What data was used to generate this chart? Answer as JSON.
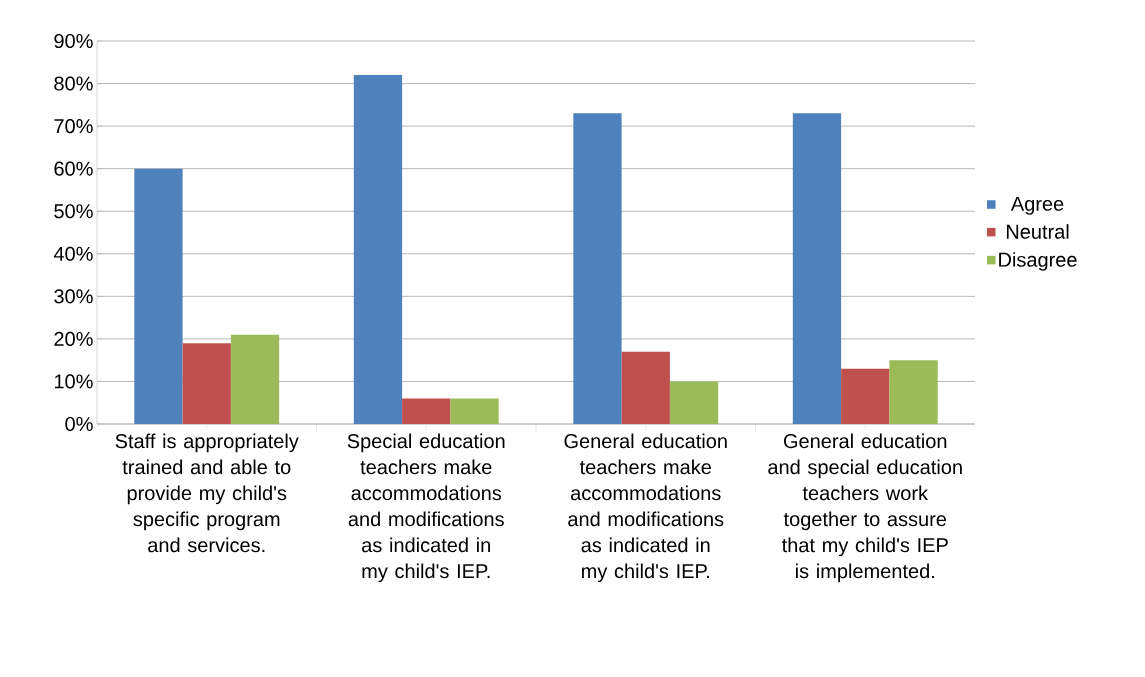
{
  "chart_data": {
    "type": "bar",
    "categories": [
      "Staff is appropriately trained and able to provide my child's specific program and services.",
      "Special education teachers make accommodations and modifications as indicated in my child's IEP.",
      "General education teachers make accommodations and modifications as indicated in my child's IEP.",
      "General education and special education teachers work together to assure that my child's IEP is implemented."
    ],
    "series": [
      {
        "name": "Agree",
        "color": "#4f81bd",
        "values": [
          60,
          82,
          73,
          73
        ]
      },
      {
        "name": "Neutral",
        "color": "#c0504d",
        "values": [
          19,
          6,
          17,
          13
        ]
      },
      {
        "name": "Disagree",
        "color": "#9bbb59",
        "values": [
          21,
          6,
          10,
          15
        ]
      }
    ],
    "ylim": [
      0,
      90
    ],
    "yticks": [
      {
        "value": 0,
        "label": "0%"
      },
      {
        "value": 10,
        "label": "10%"
      },
      {
        "value": 20,
        "label": "20%"
      },
      {
        "value": 30,
        "label": "30%"
      },
      {
        "value": 40,
        "label": "40%"
      },
      {
        "value": 50,
        "label": "50%"
      },
      {
        "value": 60,
        "label": "60%"
      },
      {
        "value": 70,
        "label": "70%"
      },
      {
        "value": 80,
        "label": "80%"
      },
      {
        "value": 90,
        "label": "90%"
      }
    ],
    "grid": "y",
    "legend": "right"
  }
}
